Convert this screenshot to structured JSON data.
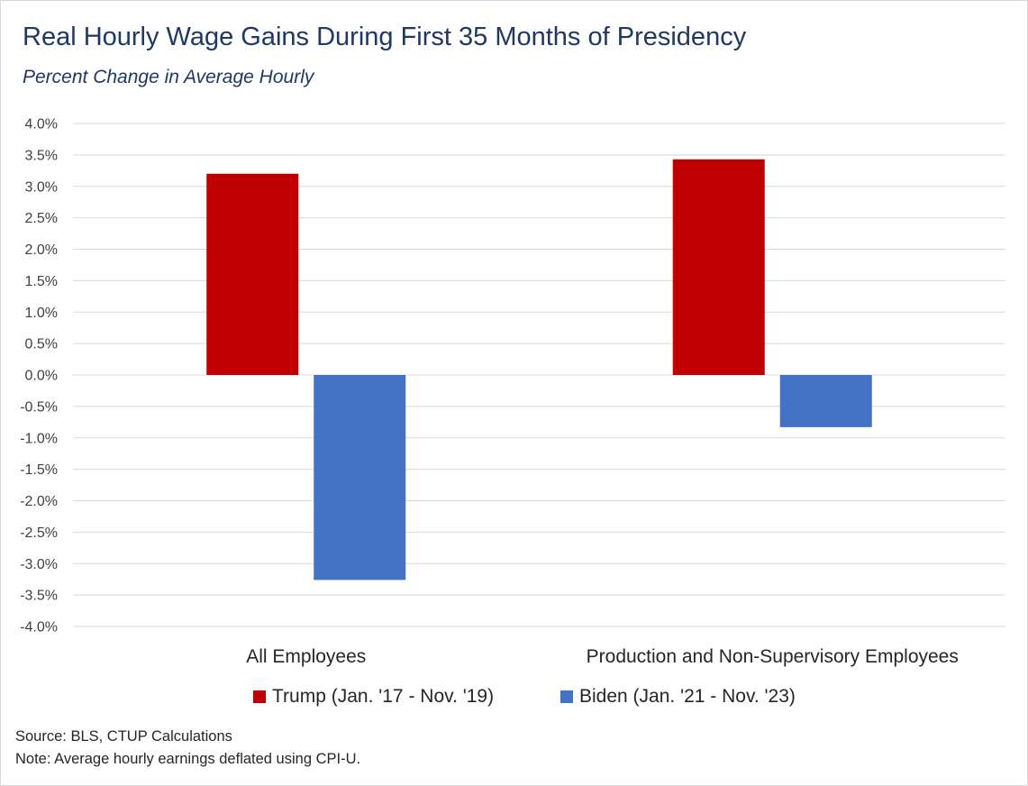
{
  "chart_data": {
    "type": "bar",
    "title": "Real Hourly Wage Gains During First 35 Months of Presidency",
    "subtitle": "Percent Change in Average Hourly",
    "categories": [
      "All Employees",
      "Production and Non-Supervisory Employees"
    ],
    "series": [
      {
        "name": "Trump (Jan. '17 - Nov. '19)",
        "color": "#c00000",
        "values": [
          3.2,
          3.43
        ]
      },
      {
        "name": "Biden (Jan. '21 - Nov. '23)",
        "color": "#4472c4",
        "values": [
          -3.26,
          -0.83
        ]
      }
    ],
    "ylim": [
      -4.0,
      4.0
    ],
    "ytick_step": 0.5,
    "y_tick_labels": [
      "4.0%",
      "3.5%",
      "3.0%",
      "2.5%",
      "2.0%",
      "1.5%",
      "1.0%",
      "0.5%",
      "0.0%",
      "-0.5%",
      "-1.0%",
      "-1.5%",
      "-2.0%",
      "-2.5%",
      "-3.0%",
      "-3.5%",
      "-4.0%"
    ],
    "grid": true,
    "legend_position": "bottom"
  },
  "footer": {
    "source": "Source: BLS, CTUP Calculations",
    "note": "Note: Average hourly earnings deflated using CPI-U."
  }
}
